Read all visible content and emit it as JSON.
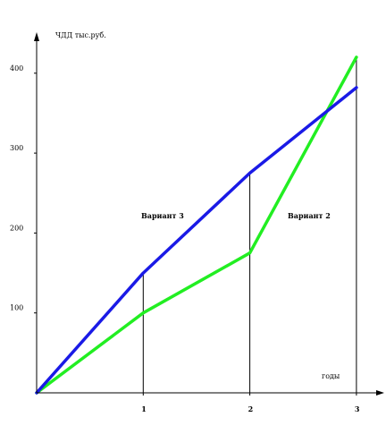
{
  "chart_data": {
    "type": "line",
    "ylabel": "ЧДД тыс.руб.",
    "xlabel": "годы",
    "x": [
      0,
      1,
      2,
      3
    ],
    "x_ticks": [
      "1",
      "2",
      "3"
    ],
    "y_ticks": [
      "100",
      "200",
      "300",
      "400"
    ],
    "ylim": [
      0,
      450
    ],
    "xlim": [
      0,
      3.2
    ],
    "series": [
      {
        "name": "Вариант 3",
        "color": "#1a1ae6",
        "values": [
          0,
          150,
          275,
          382
        ]
      },
      {
        "name": "Вариант 2",
        "color": "#22ee22",
        "values": [
          0,
          100,
          175,
          420
        ]
      }
    ]
  }
}
